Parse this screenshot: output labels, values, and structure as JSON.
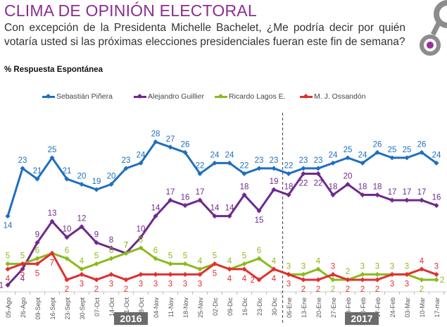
{
  "header": {
    "title": "CLIMA DE OPINIÓN ELECTORAL",
    "question": "Con excepción de la Presidenta Michelle Bachelet, ¿Me podría decir por quién votaría usted si las próximas elecciones presidenciales fueran este fin de semana?",
    "subtitle": "% Respuesta Espontánea"
  },
  "logo": {
    "name": "brand-logo",
    "ring_color": "#8c8c8c",
    "dot_color": "#9b2f9e"
  },
  "chart_data": {
    "type": "line",
    "title": "CLIMA DE OPINIÓN ELECTORAL",
    "xlabel": "",
    "ylabel": "% Respuesta Espontánea",
    "ylim": [
      0,
      30
    ],
    "grid": false,
    "legend": "top",
    "categories": [
      "05-Ago",
      "26-Ago",
      "09-Sept",
      "16-Sept",
      "23-Sept",
      "30-Sept",
      "07-Oct",
      "14-Oct",
      "21-Oct",
      "28-Oct",
      "04-Nov",
      "11-Nov",
      "18-Nov",
      "25-Nov",
      "02-Dic",
      "09-Dic",
      "16-Dic",
      "23-Dic",
      "30-Dic",
      "06-Ene",
      "13-Ene",
      "20-Ene",
      "27-Ene",
      "03-Feb",
      "10-Feb",
      "17-Feb",
      "24-Feb",
      "03-Mar",
      "10-Mar",
      "17-mar"
    ],
    "year_groups": [
      {
        "label": "2016",
        "from": "05-Ago",
        "to": "30-Dic"
      },
      {
        "label": "2017",
        "from": "06-Ene",
        "to": "17-mar"
      }
    ],
    "year_divider_after": "30-Dic",
    "series": [
      {
        "name": "Sebastián Piñera",
        "color": "#1f6fbf",
        "values": [
          14,
          23,
          21,
          25,
          21,
          20,
          19,
          20,
          23,
          24,
          28,
          27,
          26,
          22,
          24,
          24,
          22,
          23,
          23,
          22,
          23,
          23,
          24,
          25,
          24,
          26,
          25,
          25,
          26,
          24
        ],
        "label_pos": [
          "below",
          "above",
          "above",
          "above",
          "above",
          "above",
          "above",
          "above",
          "above",
          "above",
          "above",
          "above",
          "above",
          "above",
          "above",
          "above",
          "above",
          "above",
          "above",
          "above",
          "above",
          "above",
          "above",
          "above",
          "above",
          "above",
          "above",
          "above",
          "above",
          "above"
        ]
      },
      {
        "name": "Alejandro  Guillier",
        "color": "#6e2a8c",
        "values": [
          1,
          4,
          9,
          13,
          10,
          12,
          9,
          8,
          7,
          10,
          14,
          17,
          16,
          17,
          14,
          14,
          18,
          15,
          19,
          18,
          22,
          22,
          18,
          20,
          18,
          18,
          17,
          17,
          17,
          16
        ],
        "label_pos": [
          "left",
          "below",
          "above",
          "above",
          "above",
          "above",
          "above",
          "above",
          "above",
          "above",
          "above",
          "above",
          "above",
          "above",
          "above",
          "above",
          "above",
          "below",
          "above",
          "above",
          "below",
          "below",
          "above",
          "above",
          "above",
          "above",
          "above",
          "above",
          "above",
          "above"
        ]
      },
      {
        "name": "Ricardo Lagos E.",
        "color": "#8cba1e",
        "values": [
          5,
          5,
          6,
          7,
          6,
          4,
          5,
          6,
          7,
          8,
          6,
          5,
          5,
          4,
          5,
          4,
          5,
          6,
          4,
          3,
          3,
          4,
          2,
          2,
          3,
          3,
          3,
          3,
          2,
          2
        ],
        "label_pos": [
          "above",
          "above",
          "above",
          "below",
          "above",
          "above",
          "above",
          "above",
          "above",
          "above",
          "above",
          "above",
          "above",
          "above",
          "above",
          "above",
          "above",
          "above",
          "above",
          "above",
          "above",
          "above",
          "below",
          "above",
          "above",
          "above",
          "above",
          "above",
          "below",
          "right"
        ]
      },
      {
        "name": "M. J. Ossandón",
        "color": "#e03030",
        "values": [
          4,
          5,
          5,
          7,
          2,
          3,
          2,
          3,
          2,
          3,
          3,
          3,
          3,
          3,
          5,
          4,
          4,
          2,
          4,
          3,
          2,
          2,
          3,
          2,
          2,
          2,
          3,
          3,
          4,
          3
        ],
        "label_pos": [
          "below",
          "below",
          "below",
          "below",
          "below",
          "below",
          "below",
          "below",
          "below",
          "below",
          "below",
          "below",
          "below",
          "below",
          "below",
          "below",
          "below",
          "left",
          "below",
          "below",
          "below",
          "below",
          "above",
          "below",
          "below",
          "below",
          "below",
          "below",
          "above",
          "above"
        ]
      }
    ]
  }
}
